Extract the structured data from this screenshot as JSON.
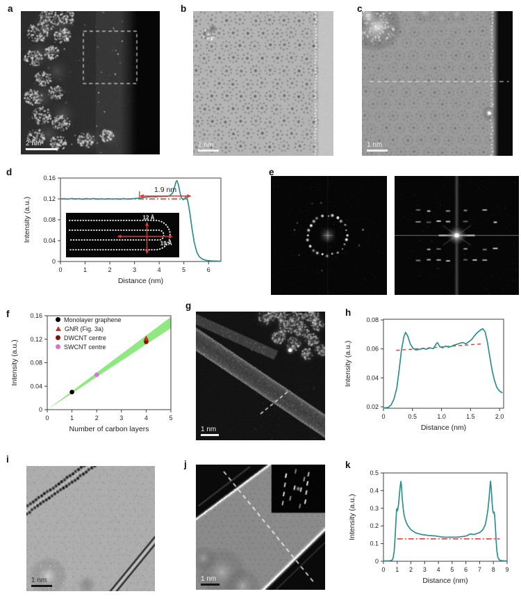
{
  "colors": {
    "trace": "#2b8f8e",
    "reference": "#e8342a",
    "band": "#8fe882",
    "panel_label": "#111111"
  },
  "panels": {
    "a": {
      "label": "a",
      "scale_bar_label": "2 nm"
    },
    "b": {
      "label": "b",
      "scale_bar_label": "1 nm"
    },
    "c": {
      "label": "c",
      "scale_bar_label": "1 nm"
    },
    "d": {
      "label": "d"
    },
    "e": {
      "label": "e"
    },
    "f": {
      "label": "f",
      "legend": [
        "Monolayer graphene",
        "GNR (Fig. 3a)",
        "DWCNT centre",
        "SWCNT centre"
      ]
    },
    "g": {
      "label": "g",
      "scale_bar_label": "1 nm"
    },
    "h": {
      "label": "h"
    },
    "i": {
      "label": "i",
      "scale_bar_label": "1 nm"
    },
    "j": {
      "label": "j",
      "scale_bar_label": "1 nm"
    },
    "k": {
      "label": "k"
    }
  },
  "chart_data": [
    {
      "id": "d",
      "type": "line",
      "xlabel": "Distance (nm)",
      "ylabel": "Intensity (a.u.)",
      "xlim": [
        0,
        6.5
      ],
      "ylim": [
        0,
        0.16
      ],
      "xticks": [
        0,
        1,
        2,
        3,
        4,
        5,
        6
      ],
      "xtick_labels": [
        "0",
        "1",
        "2",
        "3",
        "4",
        "5",
        "6"
      ],
      "yticks": [
        0,
        0.04,
        0.08,
        0.12,
        0.16
      ],
      "ytick_labels": [
        "0",
        "0.04",
        "0.08",
        "0.12",
        "0.16"
      ],
      "series": [
        {
          "name": "intensity profile across folded GNR edge",
          "points": [
            [
              0,
              0.12
            ],
            [
              0.15,
              0.1205
            ],
            [
              0.3,
              0.1195
            ],
            [
              0.45,
              0.121
            ],
            [
              0.6,
              0.1198
            ],
            [
              0.75,
              0.1205
            ],
            [
              0.9,
              0.1193
            ],
            [
              1.05,
              0.1206
            ],
            [
              1.2,
              0.1197
            ],
            [
              1.35,
              0.1208
            ],
            [
              1.5,
              0.1194
            ],
            [
              1.65,
              0.1203
            ],
            [
              1.8,
              0.1196
            ],
            [
              1.95,
              0.1205
            ],
            [
              2.1,
              0.1197
            ],
            [
              2.25,
              0.1203
            ],
            [
              2.4,
              0.1194
            ],
            [
              2.55,
              0.1206
            ],
            [
              2.7,
              0.1197
            ],
            [
              2.85,
              0.1202
            ],
            [
              3.0,
              0.1206
            ],
            [
              3.15,
              0.1214
            ],
            [
              3.3,
              0.1224
            ],
            [
              3.5,
              0.1234
            ],
            [
              3.7,
              0.1242
            ],
            [
              3.85,
              0.1238
            ],
            [
              4.0,
              0.1248
            ],
            [
              4.1,
              0.1242
            ],
            [
              4.2,
              0.1252
            ],
            [
              4.3,
              0.1246
            ],
            [
              4.45,
              0.1268
            ],
            [
              4.55,
              0.132
            ],
            [
              4.62,
              0.1425
            ],
            [
              4.68,
              0.1525
            ],
            [
              4.72,
              0.1552
            ],
            [
              4.78,
              0.1468
            ],
            [
              4.84,
              0.133
            ],
            [
              4.9,
              0.1222
            ],
            [
              4.97,
              0.1183
            ],
            [
              5.03,
              0.1203
            ],
            [
              5.08,
              0.1246
            ],
            [
              5.13,
              0.1218
            ],
            [
              5.18,
              0.111
            ],
            [
              5.25,
              0.0905
            ],
            [
              5.33,
              0.063
            ],
            [
              5.42,
              0.037
            ],
            [
              5.52,
              0.0185
            ],
            [
              5.62,
              0.0095
            ],
            [
              5.75,
              0.0045
            ],
            [
              5.9,
              0.0022
            ],
            [
              6.1,
              0.0012
            ],
            [
              6.3,
              0.0008
            ],
            [
              6.5,
              0.0006
            ]
          ]
        }
      ],
      "ref_line": {
        "x0": 0,
        "y0": 0.12,
        "x1": 5.15,
        "y1": 0.12,
        "style": "dashdot"
      },
      "annotation": {
        "text": "1.9 nm",
        "x0": 3.2,
        "x1": 5.3,
        "y": 0.1255
      },
      "inset_labels": {
        "height": "12 Å",
        "width": "19 Å"
      }
    },
    {
      "id": "f",
      "type": "scatter",
      "xlabel": "Number of carbon layers",
      "ylabel": "Intensity (a.u.)",
      "xlim": [
        0,
        5
      ],
      "ylim": [
        0,
        0.16
      ],
      "xticks": [
        0,
        1,
        2,
        3,
        4,
        5
      ],
      "xtick_labels": [
        "0",
        "1",
        "2",
        "3",
        "4",
        "5"
      ],
      "yticks": [
        0,
        0.04,
        0.08,
        0.12,
        0.16
      ],
      "ytick_labels": [
        "0",
        "0.04",
        "0.08",
        "0.12",
        "0.16"
      ],
      "band": {
        "x": [
          0,
          5
        ],
        "lower": [
          0,
          0.139
        ],
        "upper": [
          0,
          0.158
        ]
      },
      "series": [
        {
          "name": "Monolayer graphene",
          "marker": "circle",
          "color": "#000000",
          "points": [
            [
              1,
              0.03
            ]
          ]
        },
        {
          "name": "GNR (Fig. 3a)",
          "marker": "triangle",
          "color": "#d22b22",
          "points": [
            [
              4,
              0.121
            ]
          ]
        },
        {
          "name": "DWCNT centre",
          "marker": "circle",
          "color": "#7c1412",
          "points": [
            [
              4,
              0.1155
            ]
          ]
        },
        {
          "name": "SWCNT centre",
          "marker": "circle",
          "color": "#df6ed4",
          "points": [
            [
              2,
              0.0595
            ]
          ]
        }
      ]
    },
    {
      "id": "h",
      "type": "line",
      "xlabel": "Distance (nm)",
      "ylabel": "Intensity (a.u.)",
      "xlim": [
        0,
        2.07
      ],
      "ylim": [
        0.019,
        0.0805
      ],
      "xticks": [
        0,
        0.5,
        1,
        1.5,
        2
      ],
      "xtick_labels": [
        "0",
        "0.5",
        "1.0",
        "1.5",
        "2.0"
      ],
      "yticks": [
        0.02,
        0.04,
        0.06,
        0.08
      ],
      "ytick_labels": [
        "0.02",
        "0.04",
        "0.06",
        "0.08"
      ],
      "series": [
        {
          "name": "intensity profile across ribbon",
          "points": [
            [
              0,
              0.0192
            ],
            [
              0.08,
              0.0196
            ],
            [
              0.13,
              0.0212
            ],
            [
              0.18,
              0.0252
            ],
            [
              0.23,
              0.033
            ],
            [
              0.27,
              0.0455
            ],
            [
              0.31,
              0.059
            ],
            [
              0.35,
              0.0682
            ],
            [
              0.38,
              0.0714
            ],
            [
              0.42,
              0.0688
            ],
            [
              0.46,
              0.0636
            ],
            [
              0.51,
              0.0605
            ],
            [
              0.56,
              0.0592
            ],
            [
              0.62,
              0.0597
            ],
            [
              0.68,
              0.0603
            ],
            [
              0.74,
              0.0598
            ],
            [
              0.8,
              0.0607
            ],
            [
              0.86,
              0.0602
            ],
            [
              0.9,
              0.063
            ],
            [
              0.93,
              0.0644
            ],
            [
              0.97,
              0.0615
            ],
            [
              1.02,
              0.0608
            ],
            [
              1.07,
              0.062
            ],
            [
              1.12,
              0.0612
            ],
            [
              1.17,
              0.0617
            ],
            [
              1.22,
              0.0627
            ],
            [
              1.27,
              0.0632
            ],
            [
              1.32,
              0.064
            ],
            [
              1.37,
              0.0644
            ],
            [
              1.42,
              0.0635
            ],
            [
              1.47,
              0.065
            ],
            [
              1.52,
              0.0665
            ],
            [
              1.57,
              0.0692
            ],
            [
              1.62,
              0.0714
            ],
            [
              1.67,
              0.073
            ],
            [
              1.71,
              0.074
            ],
            [
              1.75,
              0.0718
            ],
            [
              1.79,
              0.0649
            ],
            [
              1.83,
              0.0551
            ],
            [
              1.87,
              0.0455
            ],
            [
              1.91,
              0.0386
            ],
            [
              1.95,
              0.0336
            ],
            [
              2.0,
              0.0308
            ],
            [
              2.05,
              0.0296
            ]
          ]
        }
      ],
      "ref_line": {
        "x0": 0.22,
        "y0": 0.059,
        "x1": 1.7,
        "y1": 0.0635,
        "style": "dashed"
      }
    },
    {
      "id": "k",
      "type": "line",
      "xlabel": "Distance (nm)",
      "ylabel": "Intensity (a.u.)",
      "xlim": [
        0,
        9
      ],
      "ylim": [
        0,
        0.5
      ],
      "xticks": [
        0,
        1,
        2,
        3,
        4,
        5,
        6,
        7,
        8,
        9
      ],
      "xtick_labels": [
        "0",
        "1",
        "2",
        "3",
        "4",
        "5",
        "6",
        "7",
        "8",
        "9"
      ],
      "yticks": [
        0,
        0.1,
        0.2,
        0.3,
        0.4,
        0.5
      ],
      "ytick_labels": [
        "0",
        "0.1",
        "0.2",
        "0.3",
        "0.4",
        "0.5"
      ],
      "series": [
        {
          "name": "intensity profile across nanotube",
          "points": [
            [
              0,
              0.002
            ],
            [
              0.3,
              0.002
            ],
            [
              0.5,
              0.003
            ],
            [
              0.62,
              0.006
            ],
            [
              0.7,
              0.016
            ],
            [
              0.78,
              0.055
            ],
            [
              0.84,
              0.125
            ],
            [
              0.9,
              0.215
            ],
            [
              0.94,
              0.272
            ],
            [
              0.97,
              0.298
            ],
            [
              1.0,
              0.285
            ],
            [
              1.04,
              0.292
            ],
            [
              1.1,
              0.325
            ],
            [
              1.16,
              0.375
            ],
            [
              1.22,
              0.425
            ],
            [
              1.27,
              0.452
            ],
            [
              1.31,
              0.428
            ],
            [
              1.37,
              0.352
            ],
            [
              1.44,
              0.295
            ],
            [
              1.51,
              0.258
            ],
            [
              1.6,
              0.233
            ],
            [
              1.7,
              0.213
            ],
            [
              1.8,
              0.199
            ],
            [
              1.92,
              0.186
            ],
            [
              2.05,
              0.176
            ],
            [
              2.2,
              0.168
            ],
            [
              2.35,
              0.161
            ],
            [
              2.5,
              0.157
            ],
            [
              2.65,
              0.1545
            ],
            [
              2.8,
              0.151
            ],
            [
              2.95,
              0.1495
            ],
            [
              3.1,
              0.148
            ],
            [
              3.25,
              0.1465
            ],
            [
              3.4,
              0.1455
            ],
            [
              3.55,
              0.1445
            ],
            [
              3.7,
              0.144
            ],
            [
              3.85,
              0.1425
            ],
            [
              4.0,
              0.1405
            ],
            [
              4.15,
              0.1385
            ],
            [
              4.3,
              0.1375
            ],
            [
              4.45,
              0.1365
            ],
            [
              4.6,
              0.136
            ],
            [
              4.75,
              0.1362
            ],
            [
              4.9,
              0.1365
            ],
            [
              5.05,
              0.1362
            ],
            [
              5.2,
              0.1368
            ],
            [
              5.35,
              0.1372
            ],
            [
              5.5,
              0.1378
            ],
            [
              5.65,
              0.139
            ],
            [
              5.8,
              0.1402
            ],
            [
              5.95,
              0.142
            ],
            [
              6.1,
              0.1458
            ],
            [
              6.22,
              0.151
            ],
            [
              6.33,
              0.1548
            ],
            [
              6.45,
              0.153
            ],
            [
              6.55,
              0.1512
            ],
            [
              6.68,
              0.1535
            ],
            [
              6.8,
              0.157
            ],
            [
              6.95,
              0.161
            ],
            [
              7.1,
              0.168
            ],
            [
              7.25,
              0.181
            ],
            [
              7.4,
              0.205
            ],
            [
              7.5,
              0.24
            ],
            [
              7.6,
              0.29
            ],
            [
              7.68,
              0.35
            ],
            [
              7.74,
              0.41
            ],
            [
              7.79,
              0.453
            ],
            [
              7.85,
              0.405
            ],
            [
              7.91,
              0.33
            ],
            [
              7.97,
              0.282
            ],
            [
              8.02,
              0.272
            ],
            [
              8.06,
              0.279
            ],
            [
              8.1,
              0.252
            ],
            [
              8.15,
              0.19
            ],
            [
              8.2,
              0.115
            ],
            [
              8.26,
              0.055
            ],
            [
              8.33,
              0.022
            ],
            [
              8.42,
              0.009
            ],
            [
              8.55,
              0.004
            ],
            [
              8.75,
              0.0025
            ],
            [
              9,
              0.002
            ]
          ]
        }
      ],
      "ref_line": {
        "x0": 1.0,
        "y0": 0.127,
        "x1": 8.45,
        "y1": 0.127,
        "style": "dashdot"
      }
    }
  ]
}
